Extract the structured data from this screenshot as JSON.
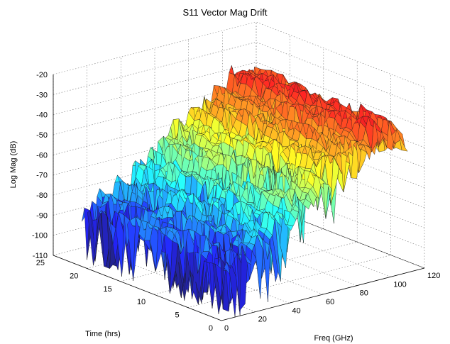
{
  "chart_data": {
    "type": "surface",
    "title": "S11 Vector Mag Drift",
    "xlabel": "Freq (GHz)",
    "ylabel": "Time (hrs)",
    "zlabel": "Log Mag (dB)",
    "x_ticks": [
      "0",
      "20",
      "40",
      "60",
      "80",
      "100",
      "120"
    ],
    "y_ticks": [
      "0",
      "5",
      "10",
      "15",
      "20",
      "25"
    ],
    "z_ticks": [
      "-20",
      "-30",
      "-40",
      "-50",
      "-60",
      "-70",
      "-80",
      "-90",
      "-100",
      "-110"
    ],
    "xlim": [
      0,
      120
    ],
    "ylim": [
      0,
      25
    ],
    "zlim": [
      -110,
      -20
    ],
    "grid": true,
    "colormap": "jet",
    "x_range_data": [
      5,
      110
    ],
    "y_range_data": [
      0,
      22
    ],
    "surface_profile": {
      "freq_ghz": [
        5,
        15,
        25,
        35,
        45,
        55,
        65,
        75,
        85,
        95,
        105,
        110
      ],
      "mean_mag_db": [
        -85,
        -82,
        -78,
        -72,
        -66,
        -58,
        -54,
        -45,
        -44,
        -36,
        -38,
        -43
      ]
    }
  }
}
